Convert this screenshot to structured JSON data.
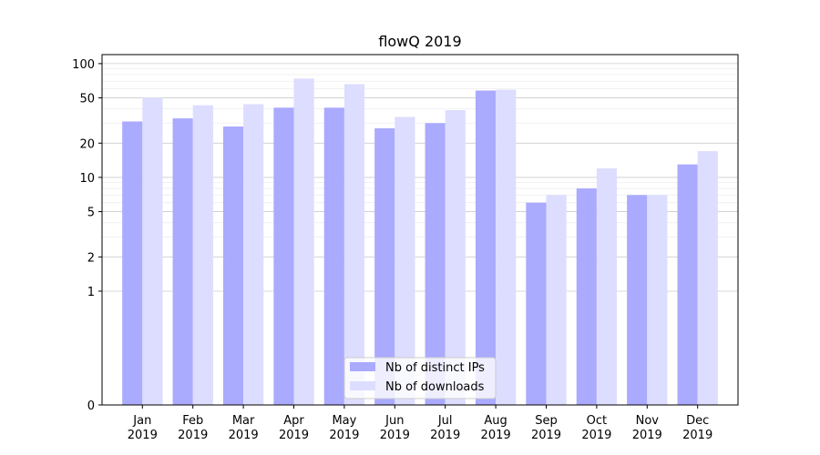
{
  "chart_data": {
    "type": "bar",
    "title": "flowQ 2019",
    "xlabel": "",
    "ylabel": "",
    "yscale": "symlog",
    "ylim": [
      0,
      120
    ],
    "yticks": [
      0,
      1,
      2,
      5,
      10,
      20,
      50,
      100
    ],
    "ytick_labels": [
      "0",
      "1",
      "2",
      "5",
      "10",
      "20",
      "50",
      "100"
    ],
    "categories": [
      {
        "month": "Jan",
        "year": "2019"
      },
      {
        "month": "Feb",
        "year": "2019"
      },
      {
        "month": "Mar",
        "year": "2019"
      },
      {
        "month": "Apr",
        "year": "2019"
      },
      {
        "month": "May",
        "year": "2019"
      },
      {
        "month": "Jun",
        "year": "2019"
      },
      {
        "month": "Jul",
        "year": "2019"
      },
      {
        "month": "Aug",
        "year": "2019"
      },
      {
        "month": "Sep",
        "year": "2019"
      },
      {
        "month": "Oct",
        "year": "2019"
      },
      {
        "month": "Nov",
        "year": "2019"
      },
      {
        "month": "Dec",
        "year": "2019"
      }
    ],
    "series": [
      {
        "name": "Nb of distinct IPs",
        "color": "#aaaaff",
        "values": [
          31,
          33,
          28,
          41,
          41,
          27,
          30,
          58,
          6,
          8,
          7,
          13
        ]
      },
      {
        "name": "Nb of downloads",
        "color": "#ddddff",
        "values": [
          50,
          43,
          44,
          74,
          66,
          34,
          39,
          59,
          7,
          12,
          7,
          17
        ]
      }
    ],
    "grid": true,
    "legend_position": "lower-center"
  }
}
